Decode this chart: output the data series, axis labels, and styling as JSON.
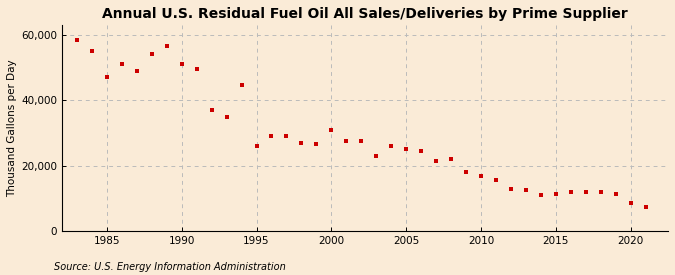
{
  "title": "Annual U.S. Residual Fuel Oil All Sales/Deliveries by Prime Supplier",
  "ylabel": "Thousand Gallons per Day",
  "source": "Source: U.S. Energy Information Administration",
  "fig_background_color": "#faebd7",
  "plot_background_color": "#faebd7",
  "marker_color": "#cc0000",
  "grid_color": "#bbbbbb",
  "years": [
    1983,
    1984,
    1985,
    1986,
    1987,
    1988,
    1989,
    1990,
    1991,
    1992,
    1993,
    1994,
    1995,
    1996,
    1997,
    1998,
    1999,
    2000,
    2001,
    2002,
    2003,
    2004,
    2005,
    2006,
    2007,
    2008,
    2009,
    2010,
    2011,
    2012,
    2013,
    2014,
    2015,
    2016,
    2017,
    2018,
    2019,
    2020,
    2021
  ],
  "values": [
    58500,
    55000,
    47000,
    51000,
    49000,
    54000,
    56500,
    51000,
    49500,
    37000,
    35000,
    44500,
    26000,
    29000,
    29000,
    27000,
    26500,
    31000,
    27500,
    27500,
    23000,
    26000,
    25000,
    24500,
    21500,
    22000,
    18000,
    17000,
    15500,
    13000,
    12500,
    11000,
    11500,
    12000,
    12000,
    12000,
    11500,
    8500,
    7500
  ],
  "ylim": [
    0,
    63000
  ],
  "yticks": [
    0,
    20000,
    40000,
    60000
  ],
  "ytick_labels": [
    "0",
    "20,000",
    "40,000",
    "60,000"
  ],
  "xticks": [
    1985,
    1990,
    1995,
    2000,
    2005,
    2010,
    2015,
    2020
  ],
  "xlim": [
    1982,
    2022.5
  ],
  "title_fontsize": 10,
  "label_fontsize": 7.5,
  "tick_fontsize": 7.5,
  "source_fontsize": 7
}
